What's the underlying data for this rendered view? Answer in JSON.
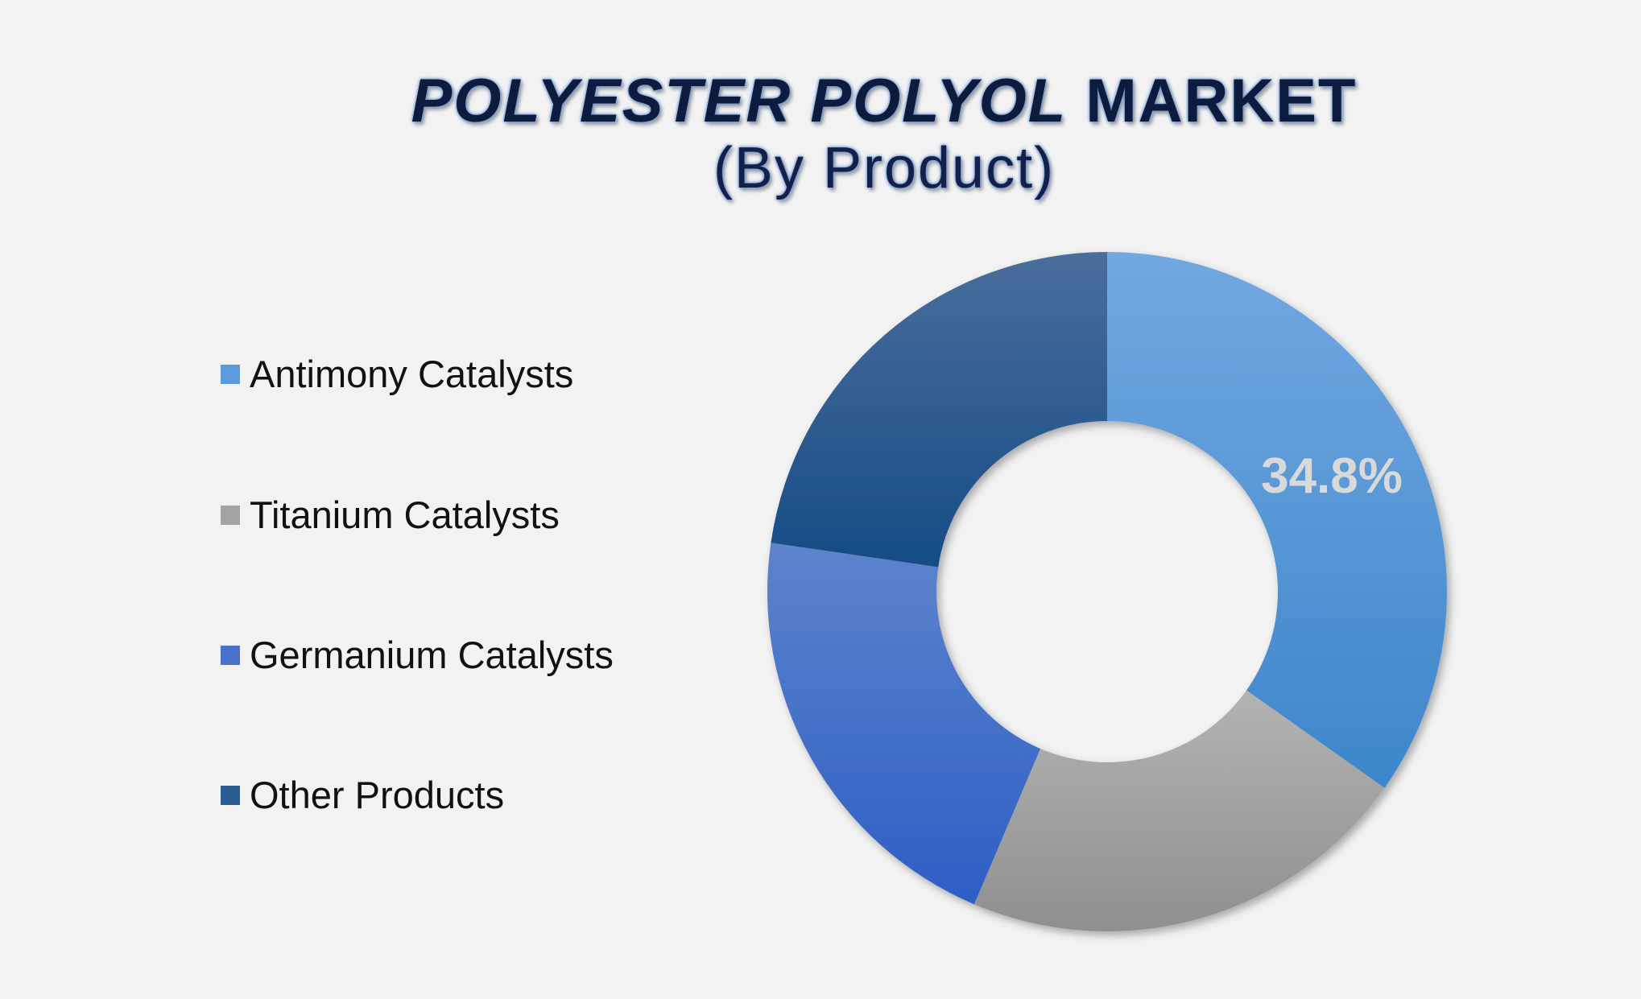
{
  "chart_data": {
    "type": "pie",
    "variant": "donut",
    "title": {
      "italic_part": "POLYESTER POLYOL",
      "regular_part": "MARKET"
    },
    "subtitle": "(By Product)",
    "categories": [
      "Antimony Catalysts",
      "Titanium Catalysts",
      "Germanium Catalysts",
      "Other Products"
    ],
    "values": [
      34.8,
      21.6,
      20.9,
      22.7
    ],
    "unit": "%",
    "data_labels": [
      {
        "category": "Antimony Catalysts",
        "text": "34.8%"
      }
    ],
    "colors": [
      "#5b9bdc",
      "#a3a3a3",
      "#4a72cc",
      "#2a5c92"
    ],
    "legend": "left"
  }
}
